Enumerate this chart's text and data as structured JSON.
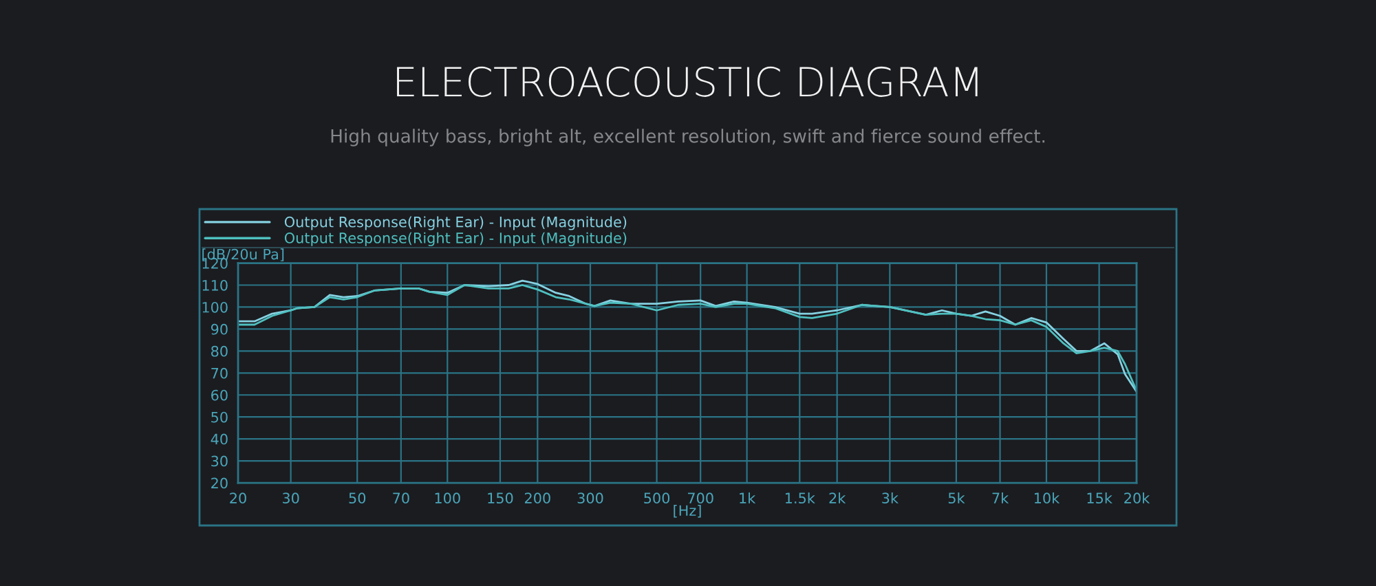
{
  "chart_data": {
    "type": "line",
    "title": "ELECTROACOUSTIC DIAGRAM",
    "subtitle": "High quality bass, bright alt, excellent resolution, swift and fierce sound effect.",
    "xlabel": "[Hz]",
    "ylabel": "[dB/20u Pa]",
    "x": [
      20,
      22.7,
      26,
      30,
      31.6,
      36,
      40.5,
      45,
      50,
      57,
      70,
      80,
      87,
      100,
      114,
      137,
      160,
      178,
      200,
      230,
      255,
      290,
      310,
      350,
      410,
      500,
      590,
      700,
      787,
      906,
      1000,
      1240,
      1500,
      1650,
      2000,
      2420,
      3000,
      3960,
      4480,
      5000,
      5600,
      6260,
      7000,
      7870,
      8900,
      10000,
      11400,
      12600,
      14000,
      15600,
      17300,
      18300,
      20000
    ],
    "series": [
      {
        "name": "Output Response(Right Ear) - Input (Magnitude)",
        "color": "#86d2e2",
        "values": [
          93.5,
          93.5,
          97,
          98.5,
          99.5,
          100,
          105.5,
          104.5,
          105,
          107.5,
          108.5,
          108.5,
          107,
          106.5,
          110,
          109.5,
          110,
          112,
          110.5,
          106.5,
          105,
          101.5,
          100.5,
          103,
          101.5,
          101.5,
          102.5,
          103,
          100.5,
          102.5,
          102,
          100,
          97,
          97,
          98.5,
          101,
          100,
          96.5,
          98.5,
          97,
          96,
          98,
          96,
          92,
          95,
          93,
          85.5,
          80,
          80,
          83.5,
          78.5,
          69.5,
          61.5
        ]
      },
      {
        "name": "Output Response(Right Ear) - Input (Magnitude)",
        "color": "#4fc0c0",
        "values": [
          92,
          92,
          96,
          98.5,
          99.5,
          100,
          104.5,
          103.5,
          104.5,
          107.5,
          108.5,
          108.5,
          107,
          105.5,
          110,
          108.5,
          108.5,
          110,
          108,
          104.5,
          103.5,
          101.5,
          100.5,
          102,
          101.5,
          98.5,
          101,
          101.5,
          100,
          101.5,
          101.5,
          99.5,
          95.5,
          95,
          97,
          101,
          100,
          96.5,
          97,
          97,
          96,
          94.5,
          94,
          92,
          94,
          91,
          83.5,
          79,
          80,
          81.5,
          80,
          74,
          62
        ]
      }
    ],
    "log": "x",
    "xlim": [
      20,
      20000
    ],
    "xticks": [
      20,
      30,
      50,
      70,
      100,
      150,
      200,
      300,
      500,
      700,
      {
        "value": 1000,
        "label": "1k"
      },
      {
        "value": 1500,
        "label": "1.5k"
      },
      {
        "value": 2000,
        "label": "2k"
      },
      {
        "value": 3000,
        "label": "3k"
      },
      {
        "value": 5000,
        "label": "5k"
      },
      {
        "value": 7000,
        "label": "7k"
      },
      {
        "value": 10000,
        "label": "10k"
      },
      {
        "value": 15000,
        "label": "15k"
      },
      {
        "value": 20000,
        "label": "20k"
      }
    ],
    "ylim": [
      20,
      120
    ],
    "yticks": [
      20,
      30,
      40,
      50,
      60,
      70,
      80,
      90,
      100,
      110,
      120
    ],
    "grid": true,
    "legend": "top left",
    "line_style": "solid"
  }
}
